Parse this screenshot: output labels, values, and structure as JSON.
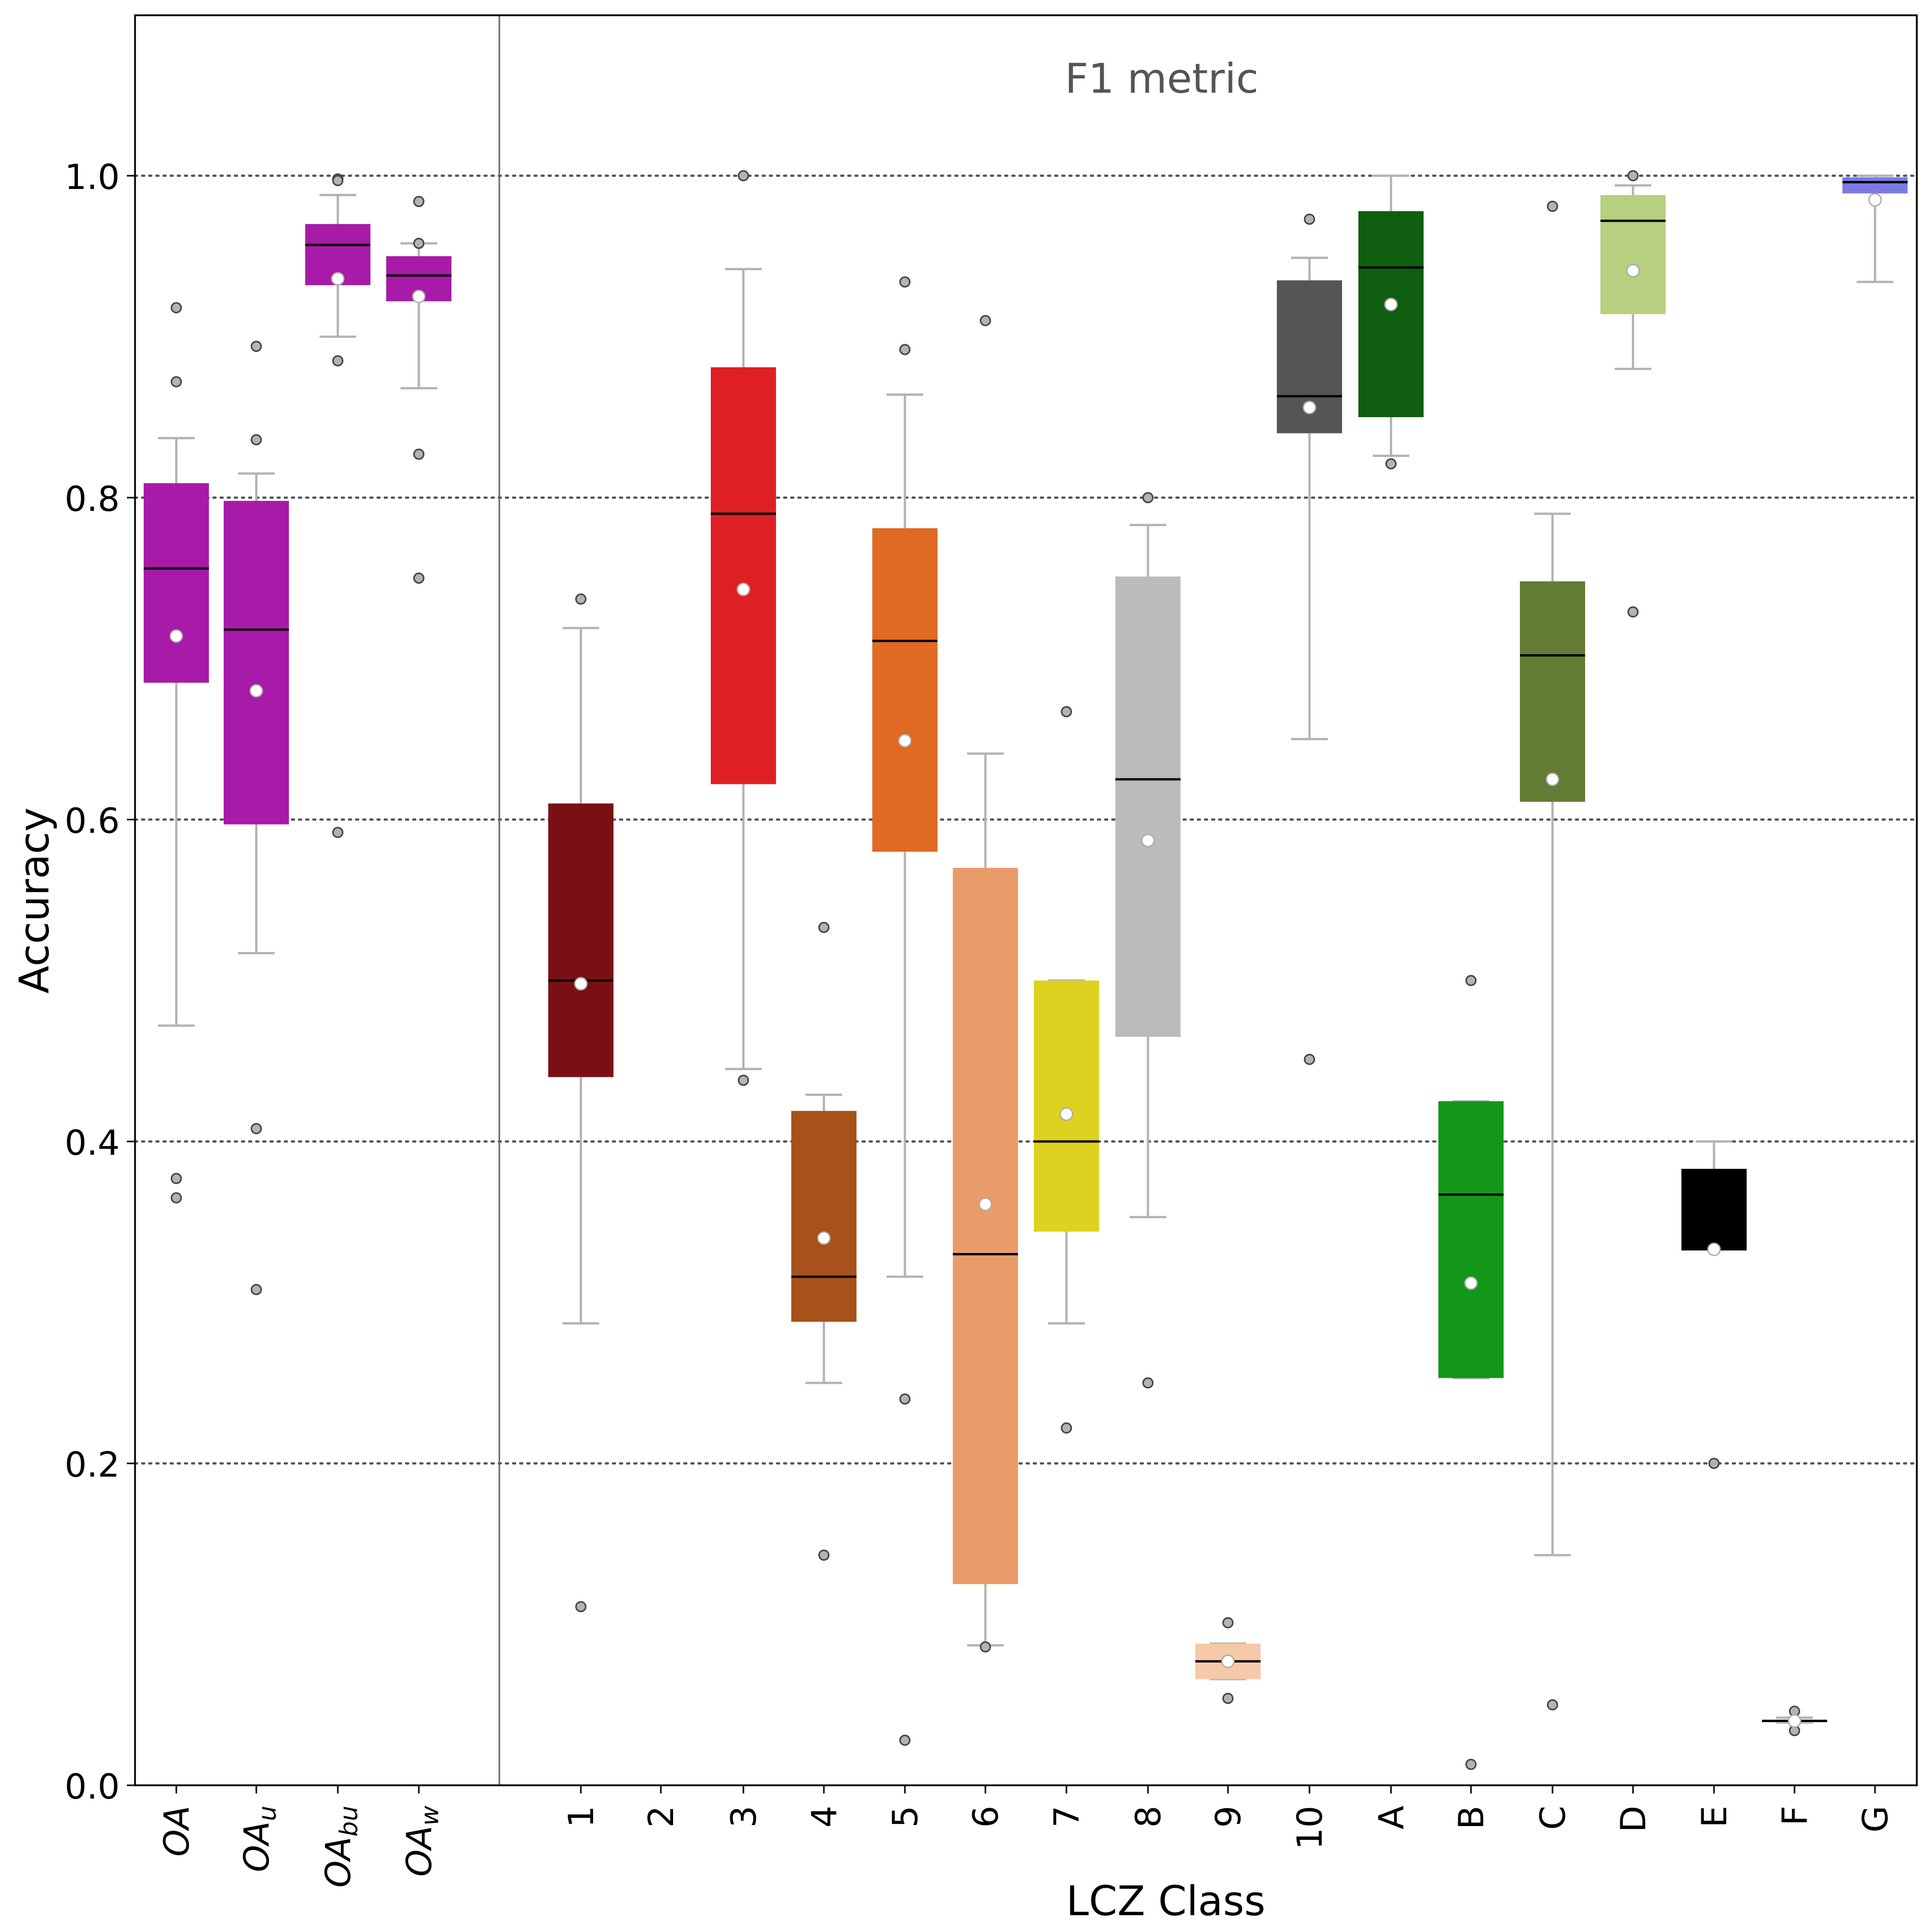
{
  "chart_data": {
    "type": "boxplot",
    "title": "F1 metric",
    "xlabel": "LCZ Class",
    "ylabel": "Accuracy",
    "ylim": [
      0.0,
      1.1
    ],
    "yticks": [
      "0.0",
      "0.2",
      "0.4",
      "0.6",
      "0.8",
      "1.0"
    ],
    "grid": "horizontal dotted at 0.2, 0.4, 0.6, 0.8, 1.0",
    "groups": [
      {
        "label": "OA",
        "base": "OA",
        "sub": "",
        "color": "#a81aa8",
        "q1": 0.685,
        "median": 0.756,
        "q3": 0.809,
        "whisker_low": 0.472,
        "whisker_high": 0.837,
        "mean": 0.714,
        "outliers": [
          0.918,
          0.872,
          0.377,
          0.365
        ],
        "median_color": "#000000"
      },
      {
        "label": "OA_u",
        "base": "OA",
        "sub": "u",
        "color": "#a81aa8",
        "q1": 0.597,
        "median": 0.718,
        "q3": 0.798,
        "whisker_low": 0.517,
        "whisker_high": 0.815,
        "mean": 0.68,
        "outliers": [
          0.894,
          0.836,
          0.408,
          0.308
        ],
        "median_color": "#000000"
      },
      {
        "label": "OA_bu",
        "base": "OA",
        "sub": "bu",
        "color": "#a81aa8",
        "q1": 0.932,
        "median": 0.957,
        "q3": 0.97,
        "whisker_low": 0.9,
        "whisker_high": 0.988,
        "mean": 0.936,
        "outliers": [
          0.998,
          0.997,
          0.885,
          0.592
        ],
        "median_color": "#000000"
      },
      {
        "label": "OA_w",
        "base": "OA",
        "sub": "w",
        "color": "#a81aa8",
        "q1": 0.922,
        "median": 0.938,
        "q3": 0.95,
        "whisker_low": 0.868,
        "whisker_high": 0.958,
        "mean": 0.925,
        "outliers": [
          0.984,
          0.958,
          0.827,
          0.75
        ],
        "median_color": "#000000"
      },
      {
        "label": "1",
        "color": "#7a1014",
        "q1": 0.44,
        "median": 0.5,
        "q3": 0.61,
        "whisker_low": 0.287,
        "whisker_high": 0.719,
        "mean": 0.498,
        "outliers": [
          0.737,
          0.111
        ],
        "median_color": "#000000"
      },
      {
        "label": "2",
        "color": "#cc0000",
        "empty": true
      },
      {
        "label": "3",
        "color": "#de2024",
        "q1": 0.622,
        "median": 0.79,
        "q3": 0.881,
        "whisker_low": 0.445,
        "whisker_high": 0.942,
        "mean": 0.743,
        "outliers": [
          1.0,
          0.438
        ],
        "median_color": "#000000"
      },
      {
        "label": "4",
        "color": "#a6521a",
        "q1": 0.288,
        "median": 0.316,
        "q3": 0.419,
        "whisker_low": 0.25,
        "whisker_high": 0.429,
        "mean": 0.34,
        "outliers": [
          0.533,
          0.143
        ],
        "median_color": "#000000"
      },
      {
        "label": "5",
        "color": "#e06a22",
        "q1": 0.58,
        "median": 0.711,
        "q3": 0.781,
        "whisker_low": 0.316,
        "whisker_high": 0.864,
        "mean": 0.649,
        "outliers": [
          0.934,
          0.892,
          0.24,
          0.028
        ],
        "median_color": "#000000"
      },
      {
        "label": "6",
        "color": "#e99c6a",
        "q1": 0.125,
        "median": 0.33,
        "q3": 0.57,
        "whisker_low": 0.087,
        "whisker_high": 0.641,
        "mean": 0.361,
        "outliers": [
          0.91,
          0.086
        ],
        "median_color": "#000000"
      },
      {
        "label": "7",
        "color": "#dcd21f",
        "q1": 0.344,
        "median": 0.4,
        "q3": 0.5,
        "whisker_low": 0.287,
        "whisker_high": 0.5,
        "mean": 0.417,
        "outliers": [
          0.667,
          0.222
        ],
        "median_color": "#000000"
      },
      {
        "label": "8",
        "color": "#bbbbbb",
        "q1": 0.465,
        "median": 0.625,
        "q3": 0.751,
        "whisker_low": 0.353,
        "whisker_high": 0.783,
        "mean": 0.587,
        "outliers": [
          0.8,
          0.25
        ],
        "median_color": "#000000"
      },
      {
        "label": "9",
        "color": "#f6c9a8",
        "q1": 0.066,
        "median": 0.077,
        "q3": 0.088,
        "whisker_low": 0.066,
        "whisker_high": 0.088,
        "mean": 0.077,
        "outliers": [
          0.101,
          0.054
        ],
        "median_color": "#000000"
      },
      {
        "label": "10",
        "color": "#555555",
        "q1": 0.84,
        "median": 0.863,
        "q3": 0.935,
        "whisker_low": 0.65,
        "whisker_high": 0.949,
        "mean": 0.856,
        "outliers": [
          0.973,
          0.451
        ],
        "median_color": "#000000"
      },
      {
        "label": "A",
        "color": "#0f5e0f",
        "q1": 0.85,
        "median": 0.943,
        "q3": 0.978,
        "whisker_low": 0.826,
        "whisker_high": 1.0,
        "mean": 0.92,
        "outliers": [
          0.821
        ],
        "median_color": "#000000"
      },
      {
        "label": "B",
        "color": "#139719",
        "q1": 0.253,
        "median": 0.367,
        "q3": 0.425,
        "whisker_low": 0.253,
        "whisker_high": 0.425,
        "mean": 0.312,
        "outliers": [
          0.5,
          0.013
        ],
        "median_color": "#000000"
      },
      {
        "label": "C",
        "color": "#627d33",
        "q1": 0.611,
        "median": 0.702,
        "q3": 0.748,
        "whisker_low": 0.143,
        "whisker_high": 0.79,
        "mean": 0.625,
        "outliers": [
          0.981,
          0.05
        ],
        "median_color": "#000000"
      },
      {
        "label": "D",
        "color": "#b6d07f",
        "q1": 0.914,
        "median": 0.972,
        "q3": 0.988,
        "whisker_low": 0.88,
        "whisker_high": 0.994,
        "mean": 0.941,
        "outliers": [
          1.0,
          0.729
        ],
        "median_color": "#000000"
      },
      {
        "label": "E",
        "color": "#000000",
        "q1": 0.333,
        "median": 0.333,
        "q3": 0.383,
        "whisker_low": 0.333,
        "whisker_high": 0.4,
        "mean": 0.333,
        "outliers": [
          0.2
        ],
        "median_color": "#000000"
      },
      {
        "label": "F",
        "color": "#f3eec2",
        "q1": 0.039,
        "median": 0.04,
        "q3": 0.041,
        "whisker_low": 0.039,
        "whisker_high": 0.042,
        "mean": 0.04,
        "outliers": [
          0.046,
          0.034
        ],
        "median_color": "#000000"
      },
      {
        "label": "G",
        "color": "#7b7be3",
        "q1": 0.989,
        "median": 0.996,
        "q3": 0.999,
        "whisker_low": 0.934,
        "whisker_high": 1.0,
        "mean": 0.985,
        "outliers": [],
        "median_color": "#000000"
      }
    ]
  }
}
